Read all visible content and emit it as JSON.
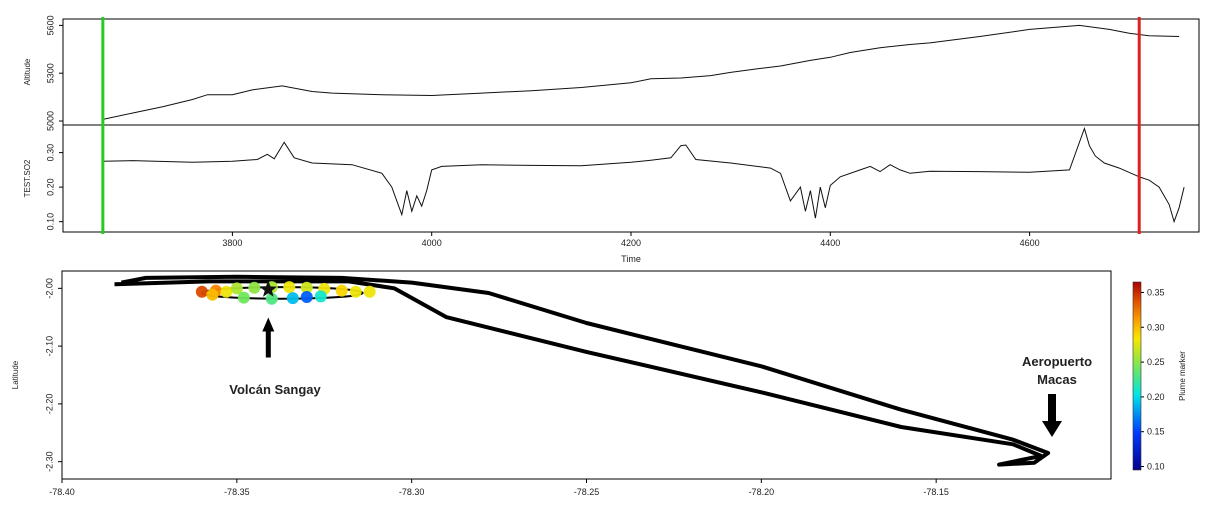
{
  "chart_data": [
    {
      "type": "line",
      "panel": "top",
      "xlabel": "Time",
      "x_ticks": [
        3800,
        4000,
        4200,
        4400,
        4600
      ],
      "xlim": [
        3630,
        4770
      ],
      "markers": [
        {
          "x": 3670,
          "color": "#22cc22"
        },
        {
          "x": 4710,
          "color": "#e02020"
        }
      ],
      "subplots": [
        {
          "ylabel": "Altitude",
          "ylim": [
            4975,
            5640
          ],
          "y_ticks": [
            5000,
            5300,
            5600
          ],
          "series": [
            {
              "x": [
                3670,
                3700,
                3730,
                3760,
                3775,
                3800,
                3820,
                3850,
                3880,
                3900,
                3950,
                4000,
                4050,
                4100,
                4150,
                4200,
                4220,
                4250,
                4280,
                4300,
                4330,
                4350,
                4380,
                4400,
                4420,
                4450,
                4480,
                4500,
                4550,
                4600,
                4650,
                4680,
                4700,
                4720,
                4750
              ],
              "y": [
                5010,
                5050,
                5090,
                5135,
                5165,
                5165,
                5195,
                5220,
                5185,
                5175,
                5165,
                5160,
                5175,
                5190,
                5210,
                5240,
                5265,
                5270,
                5285,
                5305,
                5330,
                5345,
                5380,
                5400,
                5430,
                5460,
                5480,
                5490,
                5530,
                5575,
                5600,
                5575,
                5550,
                5535,
                5530
              ]
            }
          ]
        },
        {
          "ylabel": "TEST.SO2",
          "ylim": [
            0.07,
            0.38
          ],
          "y_ticks": [
            0.1,
            0.2,
            0.3
          ],
          "series": [
            {
              "x": [
                3670,
                3700,
                3760,
                3800,
                3825,
                3835,
                3842,
                3852,
                3862,
                3880,
                3920,
                3950,
                3960,
                3965,
                3970,
                3975,
                3980,
                3985,
                3990,
                3995,
                4000,
                4010,
                4050,
                4100,
                4150,
                4200,
                4220,
                4240,
                4250,
                4255,
                4265,
                4300,
                4340,
                4350,
                4360,
                4370,
                4375,
                4380,
                4385,
                4390,
                4395,
                4400,
                4410,
                4430,
                4440,
                4450,
                4460,
                4470,
                4480,
                4500,
                4550,
                4600,
                4640,
                4655,
                4660,
                4666,
                4675,
                4690,
                4710,
                4720,
                4730,
                4740,
                4745,
                4750,
                4755
              ],
              "y": [
                0.275,
                0.277,
                0.272,
                0.275,
                0.28,
                0.295,
                0.282,
                0.33,
                0.285,
                0.27,
                0.265,
                0.24,
                0.2,
                0.16,
                0.12,
                0.19,
                0.13,
                0.175,
                0.145,
                0.19,
                0.25,
                0.26,
                0.265,
                0.263,
                0.262,
                0.272,
                0.278,
                0.285,
                0.32,
                0.322,
                0.28,
                0.27,
                0.255,
                0.24,
                0.16,
                0.2,
                0.13,
                0.19,
                0.11,
                0.2,
                0.14,
                0.205,
                0.23,
                0.25,
                0.26,
                0.245,
                0.265,
                0.25,
                0.24,
                0.246,
                0.245,
                0.243,
                0.25,
                0.37,
                0.32,
                0.29,
                0.27,
                0.255,
                0.23,
                0.22,
                0.2,
                0.15,
                0.1,
                0.14,
                0.2
              ]
            }
          ]
        }
      ]
    },
    {
      "type": "scatter",
      "panel": "bottom",
      "ylabel": "Latitude",
      "xlim": [
        -78.4,
        -78.1
      ],
      "ylim": [
        -2.33,
        -1.97
      ],
      "x_ticks": [
        -78.4,
        -78.35,
        -78.3,
        -78.25,
        -78.2,
        -78.15
      ],
      "y_ticks": [
        -2.0,
        -2.1,
        -2.2,
        -2.3
      ],
      "track": [
        [
          -78.383,
          -1.99
        ],
        [
          -78.376,
          -1.982
        ],
        [
          -78.35,
          -1.98
        ],
        [
          -78.32,
          -1.982
        ],
        [
          -78.3,
          -1.99
        ],
        [
          -78.278,
          -2.008
        ],
        [
          -78.25,
          -2.06
        ],
        [
          -78.2,
          -2.135
        ],
        [
          -78.16,
          -2.21
        ],
        [
          -78.128,
          -2.262
        ],
        [
          -78.118,
          -2.285
        ],
        [
          -78.122,
          -2.302
        ],
        [
          -78.132,
          -2.305
        ],
        [
          -78.12,
          -2.29
        ],
        [
          -78.128,
          -2.27
        ],
        [
          -78.16,
          -2.24
        ],
        [
          -78.2,
          -2.18
        ],
        [
          -78.25,
          -2.11
        ],
        [
          -78.29,
          -2.05
        ],
        [
          -78.305,
          -2.0
        ],
        [
          -78.318,
          -1.988
        ],
        [
          -78.358,
          -1.988
        ],
        [
          -78.385,
          -1.993
        ]
      ],
      "loop": {
        "center": [
          -78.337,
          -2.008
        ],
        "rx": 0.023,
        "ry": 0.01
      },
      "plume_points": [
        [
          -78.36,
          -2.006,
          0.34
        ],
        [
          -78.356,
          -2.004,
          0.32
        ],
        [
          -78.353,
          -2.006,
          0.28
        ],
        [
          -78.35,
          -2.0,
          0.26
        ],
        [
          -78.345,
          -1.999,
          0.25
        ],
        [
          -78.34,
          -1.998,
          0.26
        ],
        [
          -78.335,
          -1.998,
          0.28
        ],
        [
          -78.33,
          -1.999,
          0.27
        ],
        [
          -78.325,
          -2.001,
          0.28
        ],
        [
          -78.32,
          -2.004,
          0.29
        ],
        [
          -78.316,
          -2.006,
          0.28
        ],
        [
          -78.312,
          -2.006,
          0.28
        ],
        [
          -78.348,
          -2.016,
          0.24
        ],
        [
          -78.34,
          -2.018,
          0.23
        ],
        [
          -78.334,
          -2.017,
          0.19
        ],
        [
          -78.33,
          -2.015,
          0.16
        ],
        [
          -78.326,
          -2.014,
          0.21
        ],
        [
          -78.357,
          -2.011,
          0.3
        ]
      ],
      "colorbar": {
        "label": "Plume marker",
        "range": [
          0.095,
          0.365
        ],
        "ticks": [
          0.1,
          0.15,
          0.2,
          0.25,
          0.3,
          0.35
        ]
      },
      "annotations": [
        {
          "text": "Volcán Sangay",
          "x": -78.341,
          "y": -2.002
        },
        {
          "text": "Aeropuerto",
          "x": -78.122,
          "y": -2.275
        },
        {
          "text": "Macas",
          "x": -78.122,
          "y": -2.275
        }
      ],
      "star": {
        "x": -78.341,
        "y": -2.002
      }
    }
  ]
}
